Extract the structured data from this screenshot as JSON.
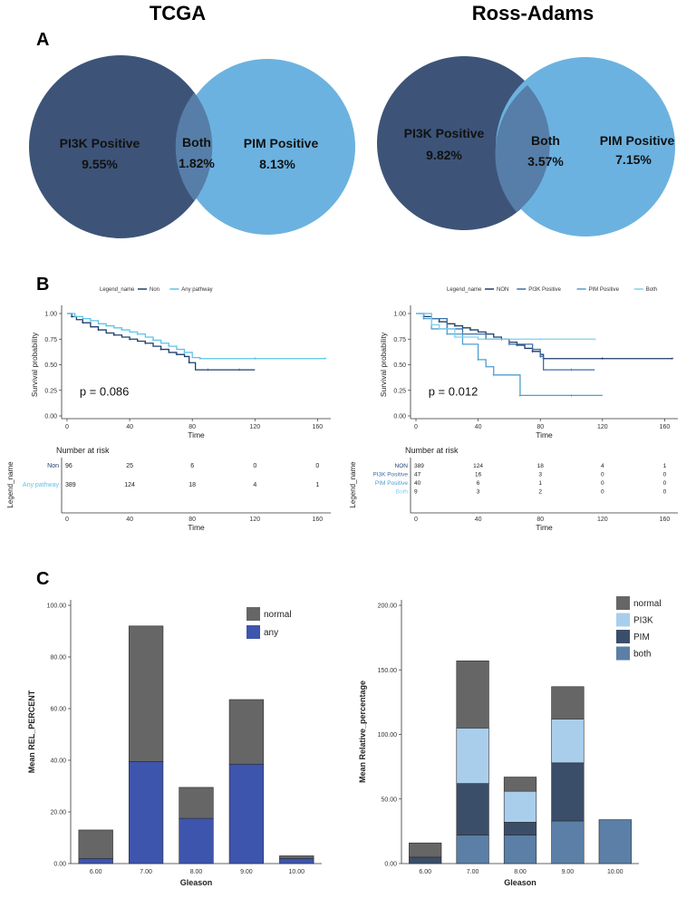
{
  "panels": {
    "a": "A",
    "b": "B",
    "c": "C"
  },
  "venn": [
    {
      "title": "TCGA",
      "left": {
        "label": "PI3K Positive",
        "value": "9.55%",
        "color": "#3d5478"
      },
      "both": {
        "label": "Both",
        "value": "1.82%"
      },
      "right": {
        "label": "PIM Positive",
        "value": "8.13%",
        "color": "#6cb2e0"
      }
    },
    {
      "title": "Ross-Adams",
      "left": {
        "label": "PI3K Positive",
        "value": "9.82%",
        "color": "#3d5478"
      },
      "both": {
        "label": "Both",
        "value": "3.57%"
      },
      "right": {
        "label": "PIM Positive",
        "value": "7.15%",
        "color": "#6cb2e0"
      }
    }
  ],
  "chart_data": [
    {
      "type": "line",
      "kind": "kaplan-meier",
      "legend_title": "Legend_name",
      "xlabel": "Time",
      "ylabel": "Survival probability",
      "xlim": [
        0,
        165
      ],
      "ylim": [
        0,
        1
      ],
      "x_ticks": [
        0,
        40,
        80,
        120,
        160
      ],
      "y_ticks": [
        "0.00",
        "0.25",
        "0.50",
        "0.75",
        "1.00"
      ],
      "pvalue": "p = 0.086",
      "series": [
        {
          "name": "Non",
          "color": "#1f3d6b",
          "x": [
            0,
            3,
            6,
            10,
            15,
            20,
            25,
            30,
            35,
            40,
            45,
            50,
            55,
            60,
            65,
            70,
            75,
            78,
            82,
            90,
            100,
            110,
            120
          ],
          "y": [
            1.0,
            0.97,
            0.94,
            0.91,
            0.87,
            0.84,
            0.81,
            0.79,
            0.77,
            0.75,
            0.73,
            0.71,
            0.68,
            0.65,
            0.62,
            0.6,
            0.58,
            0.52,
            0.45,
            0.45,
            0.45,
            0.45,
            0.45
          ]
        },
        {
          "name": "Any pathway",
          "color": "#5ec2e8",
          "x": [
            0,
            5,
            10,
            15,
            20,
            25,
            30,
            35,
            40,
            45,
            50,
            55,
            60,
            65,
            70,
            75,
            80,
            85,
            100,
            120,
            140,
            165
          ],
          "y": [
            1.0,
            0.97,
            0.95,
            0.93,
            0.9,
            0.88,
            0.86,
            0.84,
            0.82,
            0.8,
            0.77,
            0.74,
            0.71,
            0.68,
            0.65,
            0.62,
            0.57,
            0.56,
            0.56,
            0.56,
            0.56,
            0.56
          ]
        }
      ],
      "risk_table": {
        "title": "Number at risk",
        "ylabel": "Legend_name",
        "xlabel": "Time",
        "times": [
          0,
          40,
          80,
          120,
          160
        ],
        "rows": [
          {
            "name": "Non",
            "color": "#1f3d6b",
            "counts": [
              "96",
              "25",
              "6",
              "0",
              "0"
            ]
          },
          {
            "name": "Any pathway",
            "color": "#5ec2e8",
            "counts": [
              "389",
              "124",
              "18",
              "4",
              "1"
            ]
          }
        ]
      }
    },
    {
      "type": "line",
      "kind": "kaplan-meier",
      "legend_title": "Legend_name",
      "xlabel": "Time",
      "ylabel": "Survival probability",
      "xlim": [
        0,
        165
      ],
      "ylim": [
        0,
        1
      ],
      "x_ticks": [
        0,
        40,
        80,
        120,
        160
      ],
      "y_ticks": [
        "0.00",
        "0.25",
        "0.50",
        "0.75",
        "1.00"
      ],
      "pvalue": "p = 0.012",
      "series": [
        {
          "name": "NON",
          "color": "#1f3d6b",
          "x": [
            0,
            5,
            10,
            15,
            20,
            25,
            30,
            35,
            40,
            45,
            50,
            55,
            60,
            65,
            70,
            75,
            80,
            82,
            100,
            120,
            140,
            165
          ],
          "y": [
            1.0,
            0.97,
            0.95,
            0.92,
            0.9,
            0.88,
            0.86,
            0.84,
            0.82,
            0.8,
            0.77,
            0.75,
            0.72,
            0.69,
            0.66,
            0.63,
            0.6,
            0.56,
            0.56,
            0.56,
            0.56,
            0.56
          ]
        },
        {
          "name": "PI3K Positive",
          "color": "#3d6fa8",
          "x": [
            0,
            10,
            20,
            30,
            45,
            60,
            75,
            80,
            82,
            100,
            115
          ],
          "y": [
            1.0,
            0.95,
            0.85,
            0.8,
            0.75,
            0.7,
            0.65,
            0.58,
            0.45,
            0.45,
            0.45
          ]
        },
        {
          "name": "PIM Positive",
          "color": "#4d9fd0",
          "x": [
            0,
            5,
            10,
            20,
            30,
            40,
            45,
            50,
            65,
            67,
            80,
            100,
            120
          ],
          "y": [
            1.0,
            0.95,
            0.85,
            0.8,
            0.7,
            0.55,
            0.48,
            0.4,
            0.4,
            0.2,
            0.2,
            0.2,
            0.2
          ]
        },
        {
          "name": "Both",
          "color": "#7fd0f0",
          "x": [
            0,
            10,
            15,
            25,
            40,
            80,
            100,
            115
          ],
          "y": [
            1.0,
            0.89,
            0.85,
            0.77,
            0.75,
            0.75,
            0.75,
            0.75
          ]
        }
      ],
      "risk_table": {
        "title": "Number at risk",
        "ylabel": "Legend_name",
        "xlabel": "Time",
        "times": [
          0,
          40,
          80,
          120,
          160
        ],
        "rows": [
          {
            "name": "NON",
            "color": "#1f3d6b",
            "counts": [
              "389",
              "124",
              "18",
              "4",
              "1"
            ]
          },
          {
            "name": "PI3K Positive",
            "color": "#3d6fa8",
            "counts": [
              "47",
              "16",
              "3",
              "0",
              "0"
            ]
          },
          {
            "name": "PIM Positive",
            "color": "#4d9fd0",
            "counts": [
              "40",
              "6",
              "1",
              "0",
              "0"
            ]
          },
          {
            "name": "Both",
            "color": "#7fd0f0",
            "counts": [
              "9",
              "3",
              "2",
              "0",
              "0"
            ]
          }
        ]
      }
    },
    {
      "type": "bar",
      "stacked": true,
      "xlabel": "Gleason",
      "ylabel": "Mean REL_PERCENT",
      "categories": [
        "6.00",
        "7.00",
        "8.00",
        "9.00",
        "10.00"
      ],
      "ylim": [
        0,
        100
      ],
      "y_ticks": [
        "0.00",
        "20.00",
        "40.00",
        "60.00",
        "80.00",
        "100.00"
      ],
      "series": [
        {
          "name": "any",
          "color": "#3e55ad",
          "values": [
            2,
            39.5,
            17.5,
            38.5,
            2
          ]
        },
        {
          "name": "normal",
          "color": "#666666",
          "values": [
            11,
            52.5,
            12,
            25,
            1
          ]
        }
      ],
      "legend": [
        "normal",
        "any"
      ]
    },
    {
      "type": "bar",
      "stacked": true,
      "xlabel": "Gleason",
      "ylabel": "Mean Relative_percentage",
      "categories": [
        "6.00",
        "7.00",
        "8.00",
        "9.00",
        "10.00"
      ],
      "ylim": [
        0,
        200
      ],
      "y_ticks": [
        "0.00",
        "50.00",
        "100.00",
        "150.00",
        "200.00"
      ],
      "series": [
        {
          "name": "both",
          "color": "#5b7fa6",
          "values": [
            0,
            22,
            22,
            33,
            34
          ]
        },
        {
          "name": "PIM",
          "color": "#3b4e69",
          "values": [
            5,
            40,
            10,
            45,
            0
          ]
        },
        {
          "name": "PI3K",
          "color": "#a9ceec",
          "values": [
            0,
            43,
            24,
            34,
            0
          ]
        },
        {
          "name": "normal",
          "color": "#666666",
          "values": [
            11,
            52,
            11,
            25,
            0
          ]
        }
      ],
      "legend": [
        "normal",
        "PI3K",
        "PIM",
        "both"
      ]
    }
  ]
}
